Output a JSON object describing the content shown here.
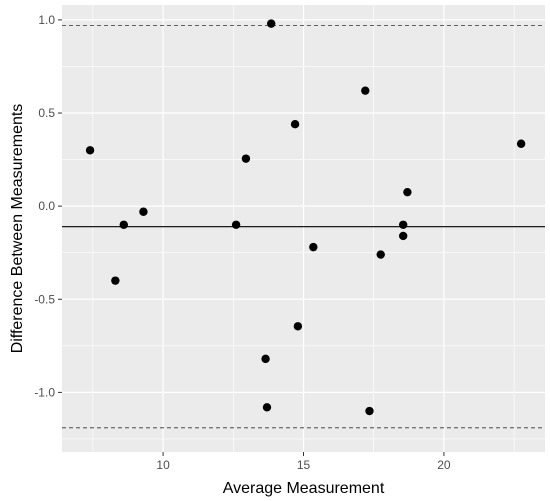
{
  "chart_data": {
    "type": "scatter",
    "title": "",
    "xlabel": "Average Measurement",
    "ylabel": "Difference Between Measurements",
    "xlim": [
      6.4,
      23.6
    ],
    "ylim": [
      -1.32,
      1.08
    ],
    "x_ticks": [
      10,
      15,
      20
    ],
    "x_tick_labels": [
      "10",
      "15",
      "20"
    ],
    "y_ticks": [
      1.0,
      0.5,
      0.0,
      -0.5,
      -1.0
    ],
    "y_tick_labels": [
      "1.0",
      "0.5",
      "0.0",
      "-0.5",
      "-1.0"
    ],
    "grid": true,
    "legend": "none",
    "panel_background": "#ebebeb",
    "grid_color": "#ffffff",
    "point_color": "#000000",
    "reference_lines": [
      {
        "kind": "mean",
        "y": -0.11,
        "style": "solid"
      },
      {
        "kind": "upper-limit",
        "y": 0.97,
        "style": "dashed"
      },
      {
        "kind": "lower-limit",
        "y": -1.19,
        "style": "dashed"
      }
    ],
    "points": [
      {
        "x": 7.4,
        "y": 0.3
      },
      {
        "x": 8.3,
        "y": -0.4
      },
      {
        "x": 8.6,
        "y": -0.1
      },
      {
        "x": 9.3,
        "y": -0.03
      },
      {
        "x": 12.6,
        "y": -0.1
      },
      {
        "x": 12.95,
        "y": 0.255
      },
      {
        "x": 13.65,
        "y": -0.82
      },
      {
        "x": 13.7,
        "y": -1.08
      },
      {
        "x": 13.85,
        "y": 0.98
      },
      {
        "x": 14.7,
        "y": 0.44
      },
      {
        "x": 14.8,
        "y": -0.645
      },
      {
        "x": 15.35,
        "y": -0.22
      },
      {
        "x": 17.2,
        "y": 0.62
      },
      {
        "x": 17.35,
        "y": -1.1
      },
      {
        "x": 17.75,
        "y": -0.26
      },
      {
        "x": 18.55,
        "y": -0.1
      },
      {
        "x": 18.55,
        "y": -0.16
      },
      {
        "x": 18.7,
        "y": 0.075
      },
      {
        "x": 22.75,
        "y": 0.335
      }
    ]
  }
}
